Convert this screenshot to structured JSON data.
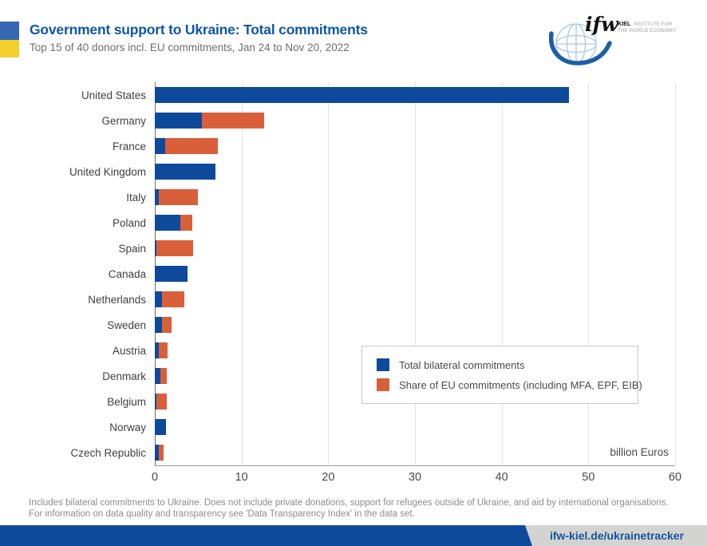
{
  "header": {
    "title": "Government support to Ukraine: Total commitments",
    "subtitle": "Top 15 of 40 donors incl. EU commitments, Jan 24 to Nov 20, 2022",
    "flag_blue": "#3567b2",
    "flag_yellow": "#f5d02c"
  },
  "logo": {
    "wordmark": "ifw",
    "line1_bold": "KIEL",
    "line1_rest": "INSTITUTE FOR",
    "line2": "THE WORLD ECONOMY"
  },
  "chart_data": {
    "type": "bar",
    "orientation": "horizontal",
    "stacked": true,
    "title": "Government support to Ukraine: Total commitments",
    "subtitle": "Top 15 of 40 donors incl. EU commitments, Jan 24 to Nov 20, 2022",
    "categories": [
      "United States",
      "Germany",
      "France",
      "United Kingdom",
      "Italy",
      "Poland",
      "Spain",
      "Canada",
      "Netherlands",
      "Sweden",
      "Austria",
      "Denmark",
      "Belgium",
      "Norway",
      "Czech Republic"
    ],
    "series": [
      {
        "name": "Total bilateral commitments",
        "color": "#0d4a9b",
        "values": [
          47.8,
          5.4,
          1.2,
          7.0,
          0.5,
          2.9,
          0.2,
          3.8,
          0.8,
          0.8,
          0.5,
          0.6,
          0.2,
          1.3,
          0.5
        ]
      },
      {
        "name": "Share of EU commitments (including MFA, EPF, EIB)",
        "color": "#d95f3b",
        "values": [
          0,
          7.2,
          6.1,
          0,
          4.5,
          1.4,
          4.2,
          0,
          2.6,
          1.1,
          1.0,
          0.8,
          1.2,
          0,
          0.5
        ]
      }
    ],
    "xlim": [
      0,
      60
    ],
    "xticks": [
      0,
      10,
      20,
      30,
      40,
      50,
      60
    ],
    "xlabel": "",
    "ylabel": "",
    "unit_label": "billion Euros",
    "grid": "vertical",
    "legend_position": "inside-right"
  },
  "legend": {
    "items": [
      {
        "label": "Total bilateral commitments",
        "color": "#0d4a9b"
      },
      {
        "label": "Share of EU commitments (including MFA, EPF, EIB)",
        "color": "#d95f3b"
      }
    ]
  },
  "footer": {
    "note_line1": "Includes bilateral commitments to Ukraine. Does not include private donations, support for refugees outside of Ukraine, and aid by international organisations.",
    "note_line2": "For information on data quality and transparency see 'Data Transparency Index' in the data set.",
    "link": "ifw-kiel.de/ukrainetracker"
  }
}
